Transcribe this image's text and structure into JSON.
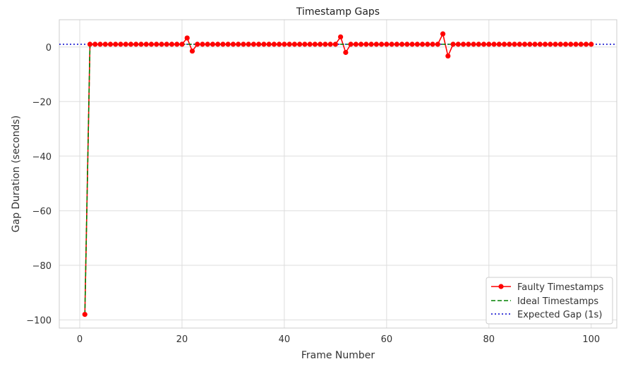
{
  "chart_data": {
    "type": "line",
    "title": "Timestamp Gaps",
    "xlabel": "Frame Number",
    "ylabel": "Gap Duration (seconds)",
    "xlim": [
      -4,
      105
    ],
    "ylim": [
      -103,
      10
    ],
    "xticks": [
      0,
      20,
      40,
      60,
      80,
      100
    ],
    "yticks": [
      0,
      -20,
      -40,
      -60,
      -80,
      -100
    ],
    "grid": true,
    "legend_position": "lower-right",
    "series": [
      {
        "name": "Faulty Timestamps",
        "style": "solid-with-markers",
        "color": "#ff0000",
        "marker_color": "#ff0000",
        "x": [
          1,
          2,
          3,
          4,
          5,
          6,
          7,
          8,
          9,
          10,
          11,
          12,
          13,
          14,
          15,
          16,
          17,
          18,
          19,
          20,
          21,
          22,
          23,
          24,
          25,
          26,
          27,
          28,
          29,
          30,
          31,
          32,
          33,
          34,
          35,
          36,
          37,
          38,
          39,
          40,
          41,
          42,
          43,
          44,
          45,
          46,
          47,
          48,
          49,
          50,
          51,
          52,
          53,
          54,
          55,
          56,
          57,
          58,
          59,
          60,
          61,
          62,
          63,
          64,
          65,
          66,
          67,
          68,
          69,
          70,
          71,
          72,
          73,
          74,
          75,
          76,
          77,
          78,
          79,
          80,
          81,
          82,
          83,
          84,
          85,
          86,
          87,
          88,
          89,
          90,
          91,
          92,
          93,
          94,
          95,
          96,
          97,
          98,
          99,
          100
        ],
        "y": [
          -98,
          1,
          1,
          1,
          1,
          1,
          1,
          1,
          1,
          1,
          1,
          1,
          1,
          1,
          1,
          1,
          1,
          1,
          1,
          1,
          3.3,
          -1.5,
          1,
          1,
          1,
          1,
          1,
          1,
          1,
          1,
          1,
          1,
          1,
          1,
          1,
          1,
          1,
          1,
          1,
          1,
          1,
          1,
          1,
          1,
          1,
          1,
          1,
          1,
          1,
          1,
          3.7,
          -2,
          1,
          1,
          1,
          1,
          1,
          1,
          1,
          1,
          1,
          1,
          1,
          1,
          1,
          1,
          1,
          1,
          1,
          1,
          4.8,
          -3.3,
          1,
          1,
          1,
          1,
          1,
          1,
          1,
          1,
          1,
          1,
          1,
          1,
          1,
          1,
          1,
          1,
          1,
          1,
          1,
          1,
          1,
          1,
          1,
          1,
          1,
          1,
          1,
          1
        ]
      },
      {
        "name": "Ideal Timestamps",
        "style": "dashed",
        "color": "#008000",
        "x": [
          1,
          2,
          3,
          4,
          5,
          6,
          7,
          8,
          9,
          10,
          11,
          12,
          13,
          14,
          15,
          16,
          17,
          18,
          19,
          20,
          21,
          22,
          23,
          24,
          25,
          26,
          27,
          28,
          29,
          30,
          31,
          32,
          33,
          34,
          35,
          36,
          37,
          38,
          39,
          40,
          41,
          42,
          43,
          44,
          45,
          46,
          47,
          48,
          49,
          50,
          51,
          52,
          53,
          54,
          55,
          56,
          57,
          58,
          59,
          60,
          61,
          62,
          63,
          64,
          65,
          66,
          67,
          68,
          69,
          70,
          71,
          72,
          73,
          74,
          75,
          76,
          77,
          78,
          79,
          80,
          81,
          82,
          83,
          84,
          85,
          86,
          87,
          88,
          89,
          90,
          91,
          92,
          93,
          94,
          95,
          96,
          97,
          98,
          99,
          100
        ],
        "y": [
          -98,
          1,
          1,
          1,
          1,
          1,
          1,
          1,
          1,
          1,
          1,
          1,
          1,
          1,
          1,
          1,
          1,
          1,
          1,
          1,
          1,
          1,
          1,
          1,
          1,
          1,
          1,
          1,
          1,
          1,
          1,
          1,
          1,
          1,
          1,
          1,
          1,
          1,
          1,
          1,
          1,
          1,
          1,
          1,
          1,
          1,
          1,
          1,
          1,
          1,
          1,
          1,
          1,
          1,
          1,
          1,
          1,
          1,
          1,
          1,
          1,
          1,
          1,
          1,
          1,
          1,
          1,
          1,
          1,
          1,
          1,
          1,
          1,
          1,
          1,
          1,
          1,
          1,
          1,
          1,
          1,
          1,
          1,
          1,
          1,
          1,
          1,
          1,
          1,
          1,
          1,
          1,
          1,
          1,
          1,
          1,
          1,
          1,
          1,
          1
        ]
      },
      {
        "name": "Expected Gap (1s)",
        "style": "dotted-horizontal",
        "color": "#0000cc",
        "y_value": 1
      }
    ]
  }
}
